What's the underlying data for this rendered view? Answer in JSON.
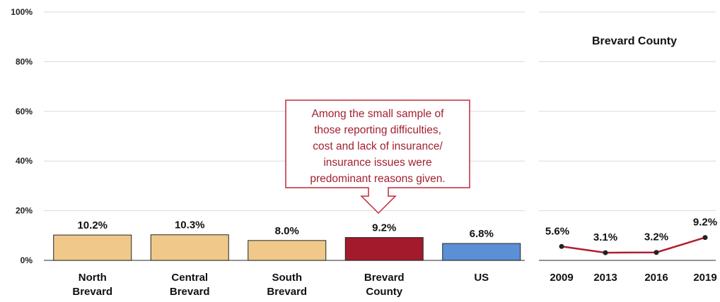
{
  "chart_data": [
    {
      "type": "bar",
      "categories": [
        [
          "North",
          "Brevard"
        ],
        [
          "Central",
          "Brevard"
        ],
        [
          "South",
          "Brevard"
        ],
        [
          "Brevard",
          "County"
        ],
        [
          "US"
        ]
      ],
      "values": [
        10.2,
        10.3,
        8.0,
        9.2,
        6.8
      ],
      "value_labels": [
        "10.2%",
        "10.3%",
        "8.0%",
        "9.2%",
        "6.8%"
      ],
      "colors": [
        "#f0c98a",
        "#f0c98a",
        "#f0c98a",
        "#a31a2c",
        "#5b8fd6"
      ],
      "ylim": [
        0,
        100
      ],
      "yticks": [
        "0%",
        "20%",
        "40%",
        "60%",
        "80%",
        "100%"
      ],
      "ytick_values": [
        0,
        20,
        40,
        60,
        80,
        100
      ],
      "grid": true,
      "annotation": [
        "Among the small sample of",
        "those reporting difficulties,",
        "cost and lack of insurance/",
        "insurance issues were",
        "predominant reasons given."
      ]
    },
    {
      "type": "line",
      "title": "Brevard County",
      "x": [
        "2009",
        "2013",
        "2016",
        "2019"
      ],
      "values": [
        5.6,
        3.1,
        3.2,
        9.2
      ],
      "value_labels": [
        "5.6%",
        "3.1%",
        "3.2%",
        "9.2%"
      ],
      "color": "#b01e32",
      "ylim": [
        0,
        100
      ],
      "grid": true
    }
  ]
}
